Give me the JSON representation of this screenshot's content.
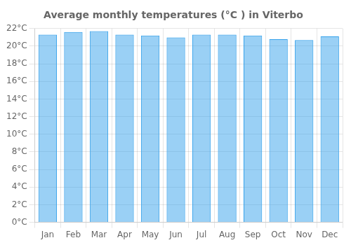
{
  "chart_data": {
    "type": "bar",
    "title": "Average monthly temperatures (°C ) in Viterbo",
    "categories": [
      "Jan",
      "Feb",
      "Mar",
      "Apr",
      "May",
      "Jun",
      "Jul",
      "Aug",
      "Sep",
      "Oct",
      "Nov",
      "Dec"
    ],
    "values": [
      21.3,
      21.6,
      21.7,
      21.3,
      21.2,
      21.0,
      21.3,
      21.3,
      21.2,
      20.8,
      20.7,
      21.1
    ],
    "ylim": [
      0,
      22
    ],
    "yticks": [
      {
        "value": 0,
        "label": "0°C"
      },
      {
        "value": 2,
        "label": "2°C"
      },
      {
        "value": 4,
        "label": "4°C"
      },
      {
        "value": 6,
        "label": "6°C"
      },
      {
        "value": 8,
        "label": "8°C"
      },
      {
        "value": 10,
        "label": "10°C"
      },
      {
        "value": 12,
        "label": "12°C"
      },
      {
        "value": 14,
        "label": "14°C"
      },
      {
        "value": 16,
        "label": "16°C"
      },
      {
        "value": 18,
        "label": "18°C"
      },
      {
        "value": 20,
        "label": "20°C"
      },
      {
        "value": 22,
        "label": "22°C"
      }
    ],
    "grid": true
  }
}
